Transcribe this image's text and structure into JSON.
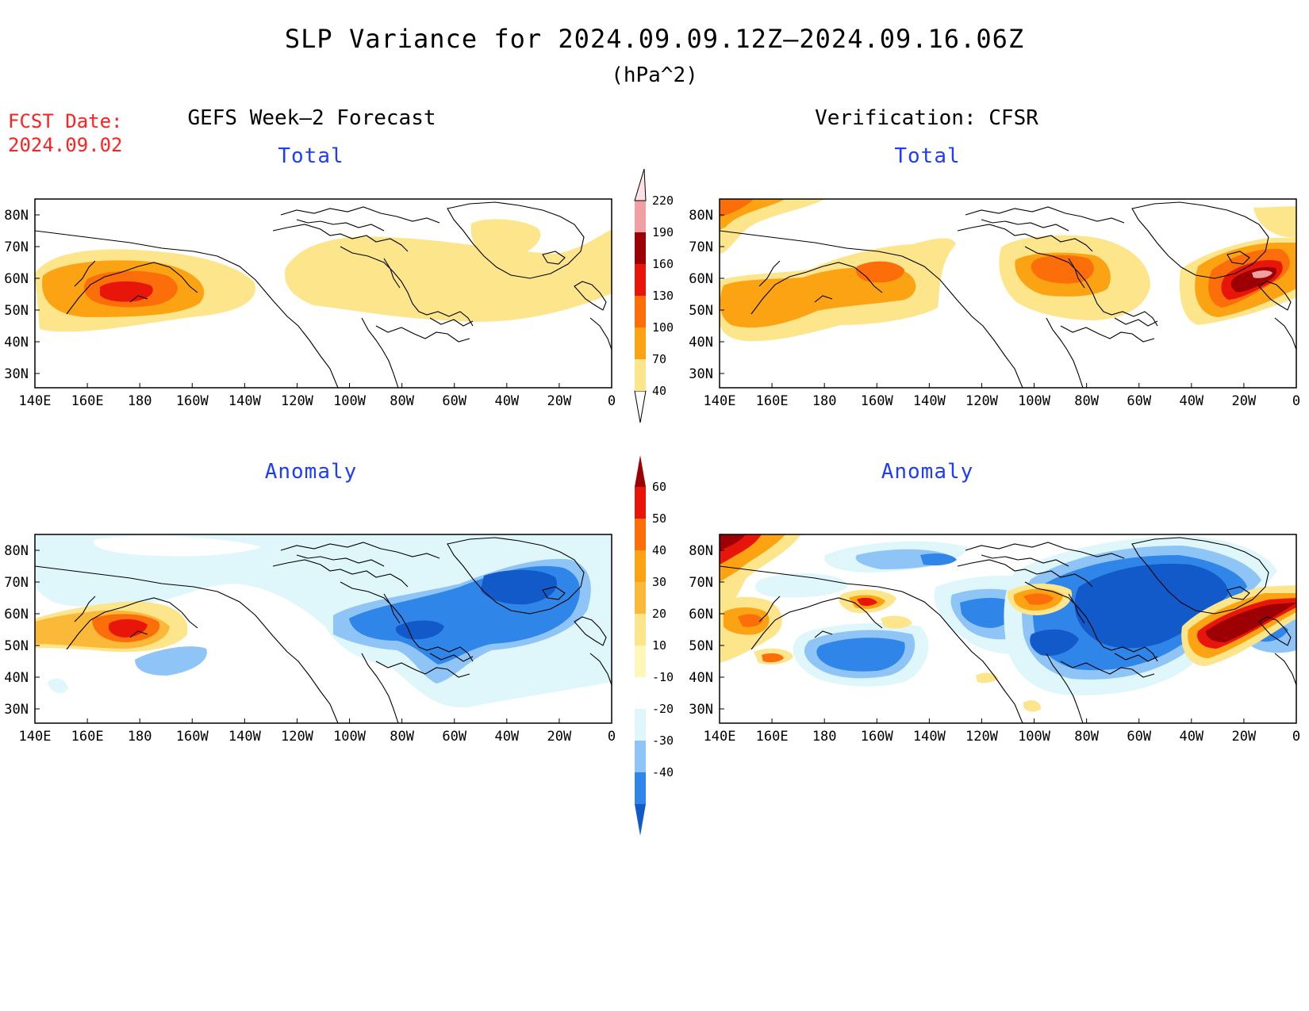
{
  "header": {
    "title": "SLP Variance for 2024.09.09.12Z–2024.09.16.06Z",
    "units": "(hPa^2)",
    "fcst_label": "FCST Date:",
    "fcst_date": "2024.09.02"
  },
  "columns": {
    "left": "GEFS Week–2 Forecast",
    "right": "Verification: CFSR"
  },
  "panels": {
    "total_label": "Total",
    "anomaly_label": "Anomaly"
  },
  "axes": {
    "lon_ticks": [
      "140E",
      "160E",
      "180",
      "160W",
      "140W",
      "120W",
      "100W",
      "80W",
      "60W",
      "40W",
      "20W",
      "0"
    ],
    "lat_ticks": [
      "80N",
      "70N",
      "60N",
      "50N",
      "40N",
      "30N"
    ]
  },
  "colorbar_total": {
    "levels": [
      "40",
      "70",
      "100",
      "130",
      "160",
      "190",
      "220"
    ],
    "colors": [
      "#fde58c",
      "#fba312",
      "#fb6e0a",
      "#e8160a",
      "#9c0005",
      "#f0a0a2",
      "#fde1e4"
    ]
  },
  "colorbar_anomaly": {
    "levels": [
      "-40",
      "-30",
      "-20",
      "-10",
      "10",
      "20",
      "30",
      "40",
      "50",
      "60"
    ],
    "colors_neg": [
      "#1259c9",
      "#3085e8",
      "#8fc5f6",
      "#dff7fb"
    ],
    "colors_pos": [
      "#fff7ba",
      "#fde58c",
      "#fbb93a",
      "#fba312",
      "#fb6e0a",
      "#e8160a",
      "#9c0005"
    ]
  },
  "palette": {
    "y1": "#fde58c",
    "o1": "#fba312",
    "o2": "#fb6e0a",
    "r1": "#e8160a",
    "dr": "#9c0005",
    "pk": "#f0a0a2",
    "lp": "#fde1e4",
    "ly": "#fff7ba",
    "lo": "#fbb93a",
    "b1": "#dff7fb",
    "b2": "#8fc5f6",
    "b3": "#3085e8",
    "b4": "#1259c9"
  }
}
